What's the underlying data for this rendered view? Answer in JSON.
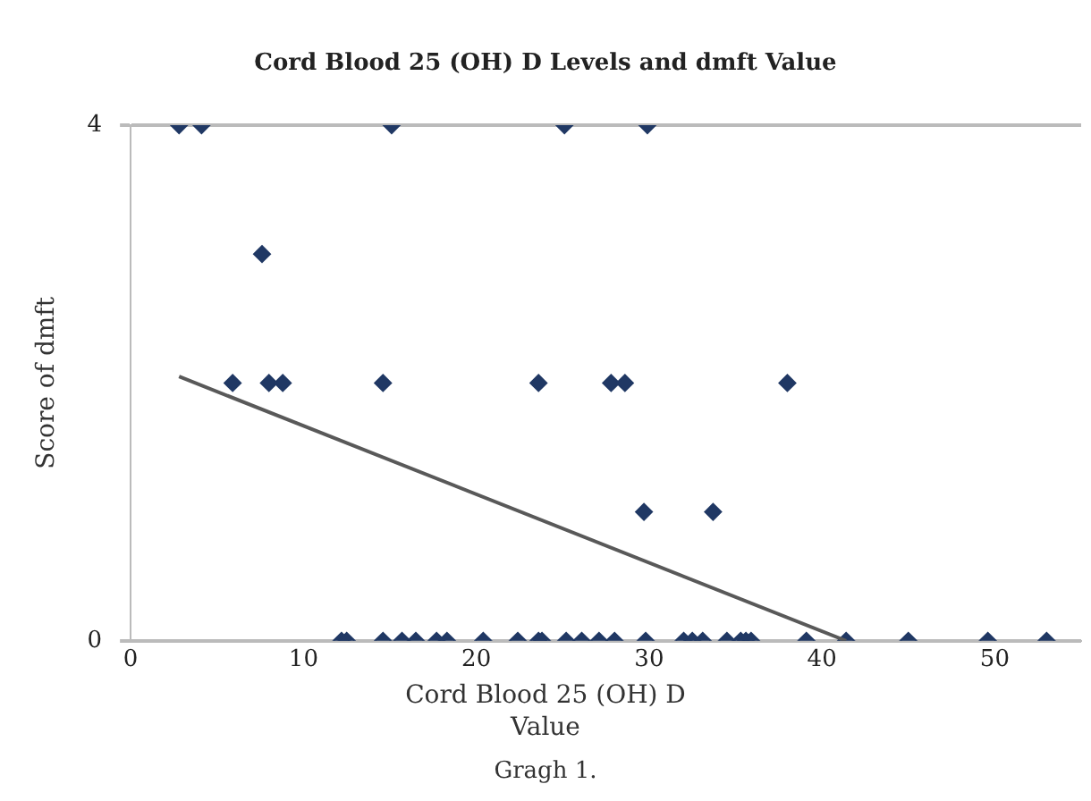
{
  "chart_data": {
    "type": "scatter",
    "title": "Cord Blood 25 (OH) D Levels and dmft Value",
    "xlabel": "Cord Blood 25 (OH) D Value",
    "ylabel": "Score of dmft",
    "annotations": [
      "Gragh 1."
    ],
    "xlim": [
      0,
      55
    ],
    "xticks": [
      0,
      10,
      20,
      30,
      40,
      50
    ],
    "ylim": [
      0,
      4
    ],
    "yticks": [
      {
        "value": 0,
        "label": "0"
      },
      {
        "value": 4,
        "label": "4"
      }
    ],
    "grid": "y",
    "marker": "diamond",
    "legend": false,
    "series": [
      {
        "color": "#203864",
        "x": [
          2.8,
          4.1,
          15.1,
          25.1,
          29.9,
          7.6,
          5.9,
          8.0,
          8.8,
          14.6,
          23.6,
          27.8,
          28.6,
          38.0,
          29.7,
          33.7,
          12.2,
          12.5,
          14.6,
          15.7,
          16.5,
          17.7,
          18.3,
          20.4,
          22.4,
          23.6,
          23.8,
          25.2,
          26.1,
          27.1,
          28.0,
          29.8,
          32.0,
          32.5,
          33.1,
          34.5,
          35.3,
          35.6,
          35.9,
          39.1,
          41.4,
          45.0,
          49.6,
          53.0
        ],
        "values": [
          4,
          4,
          4,
          4,
          4,
          3,
          2,
          2,
          2,
          2,
          2,
          2,
          2,
          2,
          1,
          1,
          0,
          0,
          0,
          0,
          0,
          0,
          0,
          0,
          0,
          0,
          0,
          0,
          0,
          0,
          0,
          0,
          0,
          0,
          0,
          0,
          0,
          0,
          0,
          0,
          0,
          0,
          0,
          0
        ]
      },
      {
        "type": "line",
        "color": "#595959",
        "x": [
          2.8,
          41.4
        ],
        "values": [
          2.05,
          0
        ],
        "marker": "none"
      }
    ]
  }
}
